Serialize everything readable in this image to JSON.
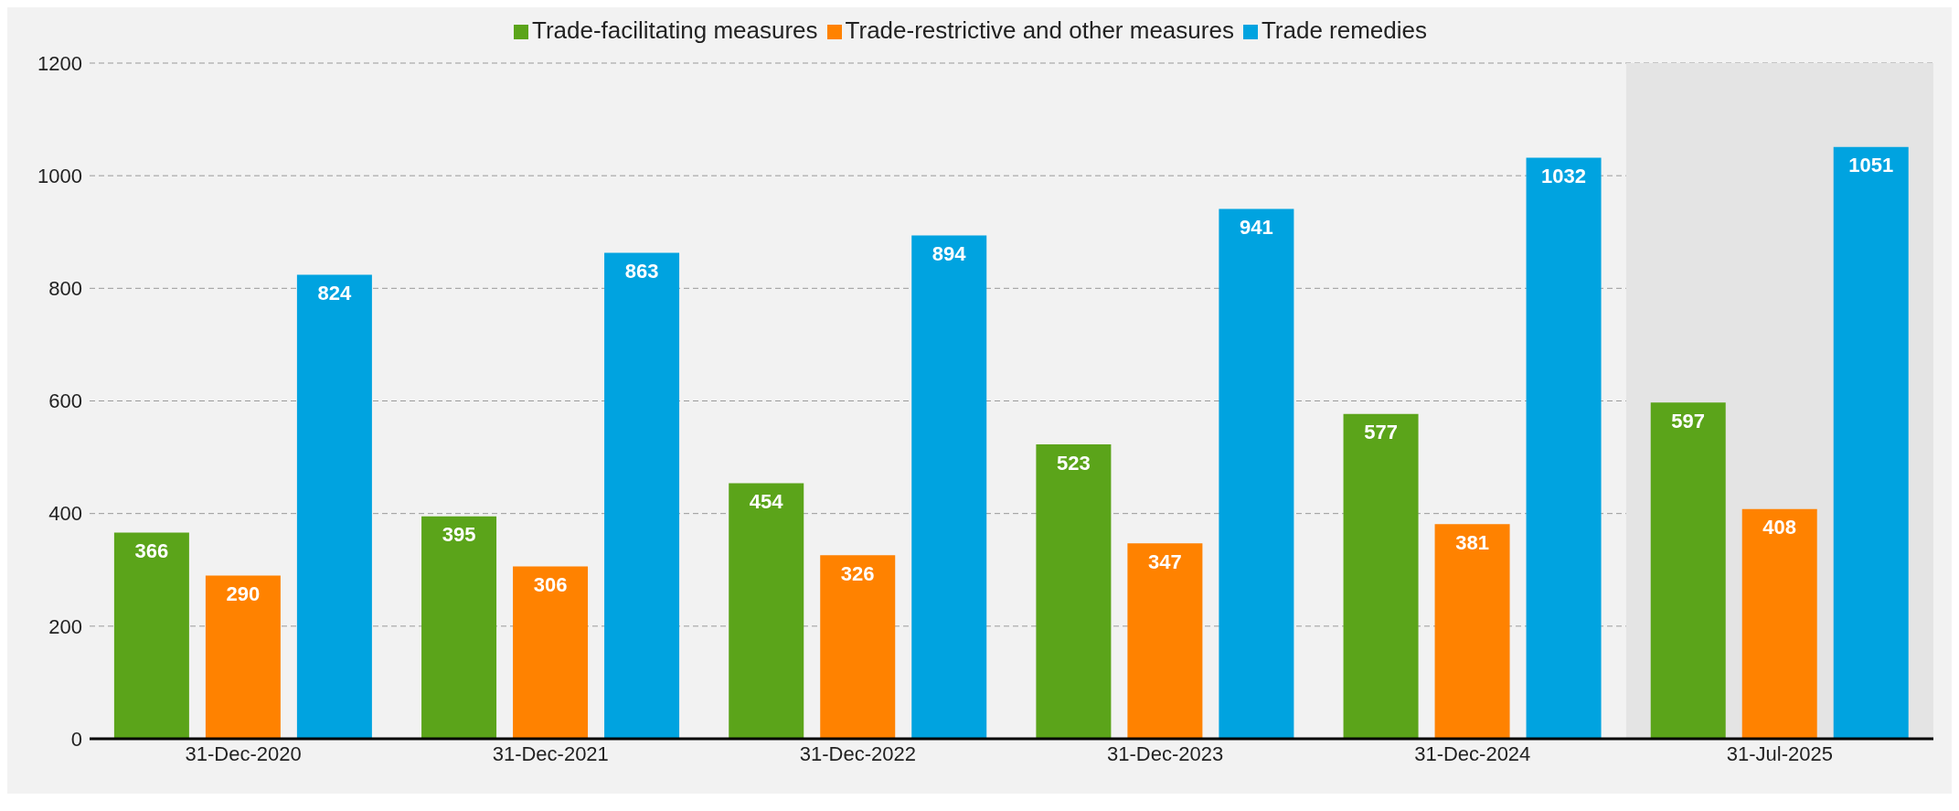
{
  "chart_data": {
    "type": "bar",
    "categories": [
      "31-Dec-2020",
      "31-Dec-2021",
      "31-Dec-2022",
      "31-Dec-2023",
      "31-Dec-2024",
      "31-Jul-2025"
    ],
    "series": [
      {
        "name": "Trade-facilitating measures",
        "color": "#5ba41a",
        "values": [
          366,
          395,
          454,
          523,
          577,
          597
        ]
      },
      {
        "name": "Trade-restrictive and other measures",
        "color": "#ff8200",
        "values": [
          290,
          306,
          326,
          347,
          381,
          408
        ]
      },
      {
        "name": "Trade remedies",
        "color": "#00a3e0",
        "values": [
          824,
          863,
          894,
          941,
          1032,
          1051
        ]
      }
    ],
    "ylim": [
      0,
      1200
    ],
    "yticks": [
      0,
      200,
      400,
      600,
      800,
      1000,
      1200
    ],
    "grid": "y",
    "legend": "top",
    "data_labels": true,
    "bands": [
      {
        "axis": "x",
        "from": "31-Jul-2025",
        "to": "31-Jul-2025",
        "color": "#e4e4e4"
      }
    ]
  }
}
